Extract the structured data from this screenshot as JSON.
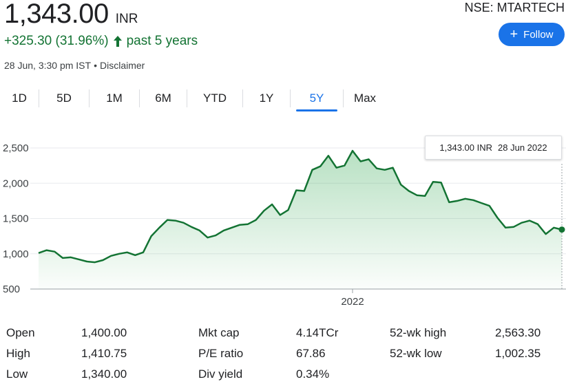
{
  "quote": {
    "price": "1,343.00",
    "currency": "INR",
    "change": "+325.30 (31.96%)",
    "change_period": "past 5 years",
    "timestamp": "28 Jun, 3:30 pm IST",
    "separator": "•",
    "disclaimer": "Disclaimer",
    "ticker": "NSE: MTARTECH",
    "follow_label": "Follow",
    "up_color": "#137333",
    "accent": "#1a73e8"
  },
  "tabs": [
    {
      "label": "1D",
      "active": false
    },
    {
      "label": "5D",
      "active": false
    },
    {
      "label": "1M",
      "active": false
    },
    {
      "label": "6M",
      "active": false
    },
    {
      "label": "YTD",
      "active": false
    },
    {
      "label": "1Y",
      "active": false
    },
    {
      "label": "5Y",
      "active": true
    },
    {
      "label": "Max",
      "active": false
    }
  ],
  "tooltip": {
    "value": "1,343.00 INR",
    "date": "28 Jun 2022"
  },
  "chart_data": {
    "type": "area",
    "ylim": [
      500,
      2600
    ],
    "yticks": [
      "2,500",
      "2,000",
      "1,500",
      "1,000",
      "500"
    ],
    "ytick_values": [
      2500,
      2000,
      1500,
      1000,
      500
    ],
    "xtick": {
      "label": "2022",
      "position_fraction": 0.6
    },
    "series": [
      {
        "color": "#137333",
        "values": [
          1010,
          1050,
          1030,
          940,
          950,
          920,
          890,
          880,
          910,
          970,
          1000,
          1020,
          980,
          1020,
          1250,
          1370,
          1480,
          1470,
          1440,
          1380,
          1330,
          1230,
          1260,
          1330,
          1370,
          1410,
          1420,
          1480,
          1610,
          1700,
          1550,
          1620,
          1900,
          1890,
          2190,
          2240,
          2390,
          2220,
          2250,
          2460,
          2310,
          2340,
          2210,
          2190,
          2220,
          1980,
          1890,
          1830,
          1820,
          2020,
          2010,
          1730,
          1750,
          1780,
          1760,
          1720,
          1680,
          1510,
          1370,
          1380,
          1440,
          1470,
          1420,
          1280,
          1370,
          1343
        ]
      }
    ],
    "grid": true,
    "last_point": 1343
  },
  "stats": {
    "col1": [
      {
        "label": "Open",
        "value": "1,400.00"
      },
      {
        "label": "High",
        "value": "1,410.75"
      },
      {
        "label": "Low",
        "value": "1,340.00"
      }
    ],
    "col2": [
      {
        "label": "Mkt cap",
        "value": "4.14TCr"
      },
      {
        "label": "P/E ratio",
        "value": "67.86"
      },
      {
        "label": "Div yield",
        "value": "0.34%"
      }
    ],
    "col3": [
      {
        "label": "52-wk high",
        "value": "2,563.30"
      },
      {
        "label": "52-wk low",
        "value": "1,002.35"
      }
    ]
  }
}
